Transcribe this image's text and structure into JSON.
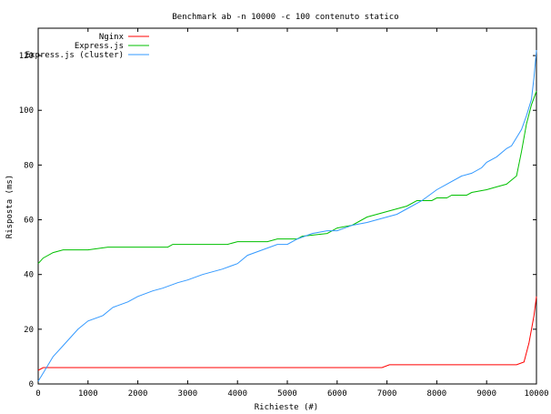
{
  "chart_data": {
    "type": "line",
    "title": "Benchmark ab -n 10000 -c 100 contenuto statico",
    "xlabel": "Richieste (#)",
    "ylabel": "Risposta (ms)",
    "xlim": [
      0,
      10000
    ],
    "ylim": [
      0,
      130
    ],
    "xticks": [
      0,
      1000,
      2000,
      3000,
      4000,
      5000,
      6000,
      7000,
      8000,
      9000,
      10000
    ],
    "yticks": [
      0,
      20,
      40,
      60,
      80,
      100,
      120
    ],
    "grid": false,
    "legend_position": "top-left",
    "series": [
      {
        "name": "Nginx",
        "color": "#ff0000",
        "points": [
          [
            0,
            5
          ],
          [
            100,
            6
          ],
          [
            500,
            6
          ],
          [
            1000,
            6
          ],
          [
            2000,
            6
          ],
          [
            3000,
            6
          ],
          [
            4000,
            6
          ],
          [
            5000,
            6
          ],
          [
            6000,
            6
          ],
          [
            6900,
            6
          ],
          [
            7050,
            7
          ],
          [
            8000,
            7
          ],
          [
            9000,
            7
          ],
          [
            9600,
            7
          ],
          [
            9750,
            8
          ],
          [
            9850,
            15
          ],
          [
            9950,
            25
          ],
          [
            10000,
            32
          ]
        ]
      },
      {
        "name": "Express.js",
        "color": "#00c000",
        "points": [
          [
            0,
            44
          ],
          [
            100,
            46
          ],
          [
            300,
            48
          ],
          [
            500,
            49
          ],
          [
            1000,
            49
          ],
          [
            1400,
            50
          ],
          [
            2000,
            50
          ],
          [
            2600,
            50
          ],
          [
            2700,
            51
          ],
          [
            3000,
            51
          ],
          [
            3800,
            51
          ],
          [
            4000,
            52
          ],
          [
            4600,
            52
          ],
          [
            4800,
            53
          ],
          [
            5200,
            53
          ],
          [
            5300,
            54
          ],
          [
            5800,
            55
          ],
          [
            6000,
            57
          ],
          [
            6300,
            58
          ],
          [
            6600,
            61
          ],
          [
            7000,
            63
          ],
          [
            7400,
            65
          ],
          [
            7600,
            67
          ],
          [
            7900,
            67
          ],
          [
            8000,
            68
          ],
          [
            8200,
            68
          ],
          [
            8300,
            69
          ],
          [
            8600,
            69
          ],
          [
            8700,
            70
          ],
          [
            9000,
            71
          ],
          [
            9200,
            72
          ],
          [
            9400,
            73
          ],
          [
            9600,
            76
          ],
          [
            9700,
            85
          ],
          [
            9800,
            95
          ],
          [
            9900,
            102
          ],
          [
            10000,
            107
          ]
        ]
      },
      {
        "name": "Express.js (cluster)",
        "color": "#3399ff",
        "points": [
          [
            0,
            1
          ],
          [
            100,
            4
          ],
          [
            300,
            10
          ],
          [
            500,
            14
          ],
          [
            800,
            20
          ],
          [
            1000,
            23
          ],
          [
            1300,
            25
          ],
          [
            1500,
            28
          ],
          [
            1800,
            30
          ],
          [
            2000,
            32
          ],
          [
            2300,
            34
          ],
          [
            2500,
            35
          ],
          [
            2800,
            37
          ],
          [
            3000,
            38
          ],
          [
            3300,
            40
          ],
          [
            3500,
            41
          ],
          [
            3700,
            42
          ],
          [
            4000,
            44
          ],
          [
            4200,
            47
          ],
          [
            4500,
            49
          ],
          [
            4800,
            51
          ],
          [
            5000,
            51
          ],
          [
            5200,
            53
          ],
          [
            5500,
            55
          ],
          [
            5800,
            56
          ],
          [
            6000,
            56
          ],
          [
            6300,
            58
          ],
          [
            6600,
            59
          ],
          [
            7000,
            61
          ],
          [
            7200,
            62
          ],
          [
            7500,
            65
          ],
          [
            7700,
            67
          ],
          [
            8000,
            71
          ],
          [
            8200,
            73
          ],
          [
            8500,
            76
          ],
          [
            8700,
            77
          ],
          [
            8900,
            79
          ],
          [
            9000,
            81
          ],
          [
            9200,
            83
          ],
          [
            9400,
            86
          ],
          [
            9500,
            87
          ],
          [
            9700,
            93
          ],
          [
            9800,
            98
          ],
          [
            9900,
            104
          ],
          [
            9950,
            112
          ],
          [
            10000,
            122
          ]
        ]
      }
    ]
  }
}
